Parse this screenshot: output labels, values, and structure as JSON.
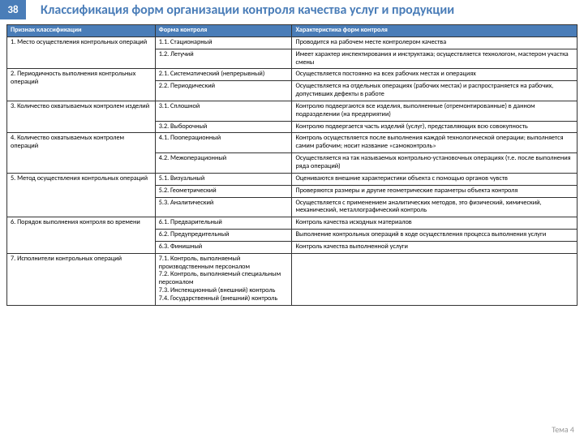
{
  "slideNumber": "38",
  "title": "Классификация форм организации контроля качества услуг и продукции",
  "footer": "Тема 4",
  "headers": [
    "Признак классификации",
    "Форма контроля",
    "Характеристика форм контроля"
  ],
  "rows": [
    {
      "a": "1. Место осуществления контрольных операций",
      "aRowspan": 2,
      "b": "1.1. Стационарный",
      "c": "Проводится на рабочем месте контролером качества"
    },
    {
      "b": "1.2. Летучий",
      "c": "Имеет характер инспектирования и инструктажа; осуществляется технологом, мастером участка смены"
    },
    {
      "a": "2. Периодичность выполнения контрольных операций",
      "aRowspan": 2,
      "b": "2.1. Систематический (непрерывный)",
      "c": "Осуществляется постоянно на всех рабочих местах и операциях"
    },
    {
      "b": "2.2. Периодический",
      "c": "Осуществляется на отдельных операциях (рабочих местах) и распространяется на рабочих, допустивших дефекты в работе"
    },
    {
      "a": "3. Количество охватываемых контролем изделий",
      "aRowspan": 2,
      "b": "3.1. Сплошной",
      "c": "Контролю подвергаются все изделия, выполненные (отремонтированные) в данном подразделении (на предприятии)"
    },
    {
      "b": "3.2. Выборочный",
      "c": "Контролю подвергается часть изделий (услуг), представляющих всю совокупность"
    },
    {
      "a": "4. Количество охватываемых контролем операций",
      "aRowspan": 2,
      "b": "4.1. Пооперационный",
      "c": "Контроль осуществляется после выполнения каждой технологической операции; выполняется самим рабочим; носит название «самоконтроль»"
    },
    {
      "b": "4.2. Межоперационный",
      "c": "Осуществляется на так называемых контрольно-установочных операциях (т.е. после выполнения ряда операций)"
    },
    {
      "a": "5. Метод осуществления контрольных операций",
      "aRowspan": 3,
      "b": "5.1. Визуальный",
      "c": "Оцениваются внешние характеристики объекта с помощью органов чувств"
    },
    {
      "b": "5.2. Геометрический",
      "c": "Проверяются размеры и другие геометрические параметры объекта контроля"
    },
    {
      "b": "5.3. Аналитический",
      "c": "Осуществляется с применением аналитических методов, это физический, химический, механический, металлографический контроль"
    },
    {
      "a": "6. Порядок выполнения контроля во времени",
      "aRowspan": 3,
      "b": "6.1. Предварительный",
      "c": "Контроль качества исходных материалов"
    },
    {
      "b": "6.2. Предупредительный",
      "c": "Выполнение контрольных операций в ходе осуществления процесса выполнения услуги"
    },
    {
      "b": "6.3. Финишный",
      "c": "Контроль качества выполненной услуги"
    },
    {
      "a": "7. Исполнители контрольных операций",
      "aRowspan": 1,
      "b": "7.1. Контроль, выполняемый производственным персоналом\n7.2. Контроль, выполняемый специальным персоналом\n7.3. Инспекционный (внешний) контроль\n7.4. Государственный (внешний) контроль",
      "c": ""
    }
  ]
}
